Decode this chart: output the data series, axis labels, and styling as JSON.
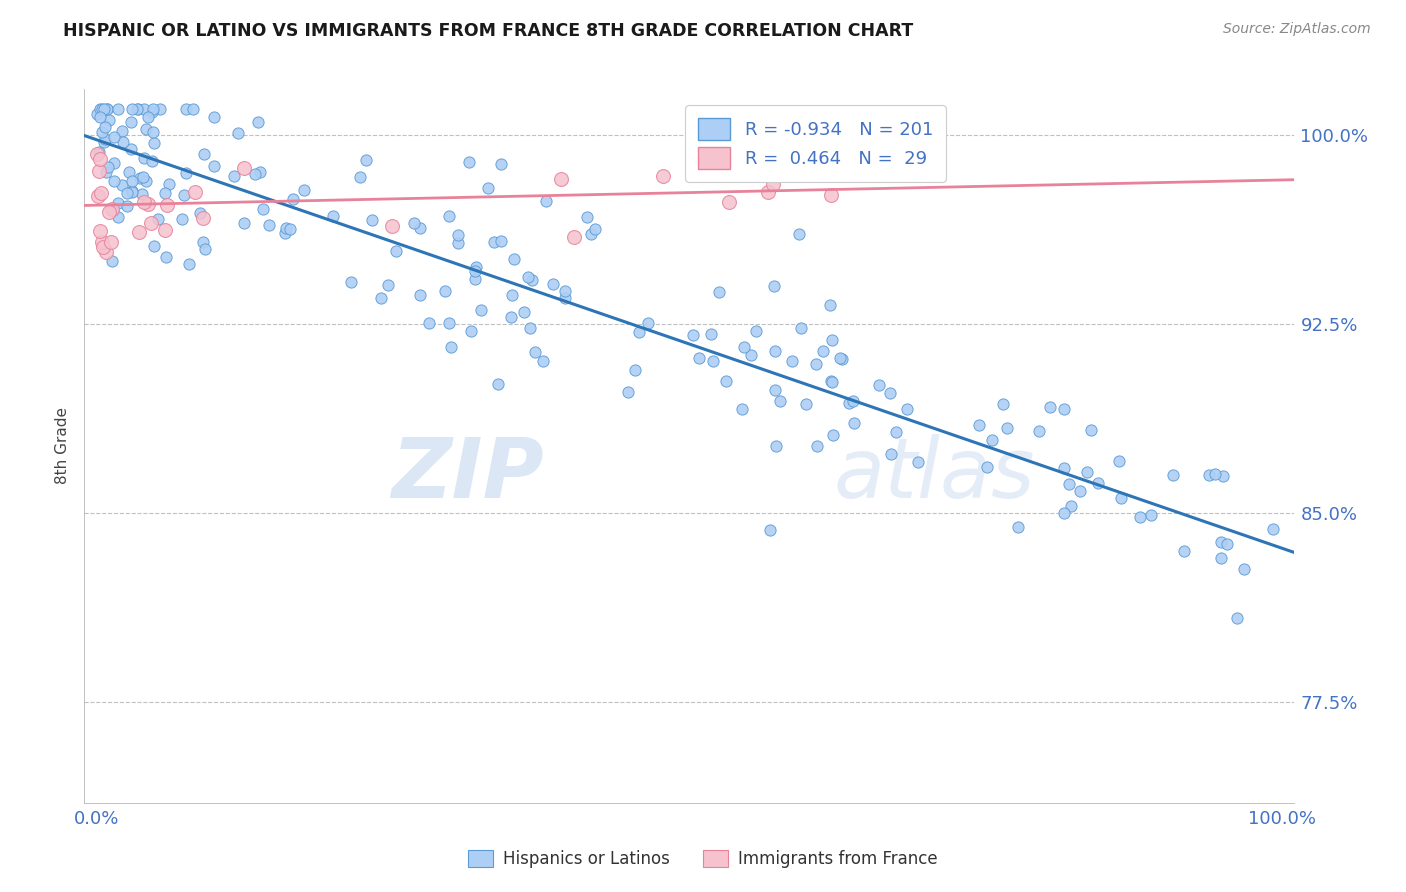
{
  "title": "HISPANIC OR LATINO VS IMMIGRANTS FROM FRANCE 8TH GRADE CORRELATION CHART",
  "source_text": "Source: ZipAtlas.com",
  "ylabel": "8th Grade",
  "watermark_zip": "ZIP",
  "watermark_atlas": "atlas",
  "xlim": [
    -0.01,
    1.01
  ],
  "ylim": [
    0.735,
    1.018
  ],
  "x_ticks": [
    0.0,
    1.0
  ],
  "x_tick_labels": [
    "0.0%",
    "100.0%"
  ],
  "y_ticks": [
    0.775,
    0.85,
    0.925,
    1.0
  ],
  "y_tick_labels": [
    "77.5%",
    "85.0%",
    "92.5%",
    "100.0%"
  ],
  "blue_R": -0.934,
  "blue_N": 201,
  "pink_R": 0.464,
  "pink_N": 29,
  "blue_color": "#aecff5",
  "blue_edge_color": "#5b9bd5",
  "blue_line_color": "#2e75b6",
  "pink_color": "#f5c2ce",
  "pink_edge_color": "#e8829a",
  "pink_line_color": "#e8829a",
  "legend_label_blue": "Hispanics or Latinos",
  "legend_label_pink": "Immigrants from France",
  "title_color": "#1a1a1a",
  "tick_label_color": "#4472c4",
  "grid_color": "#c0c0c0",
  "background_color": "#ffffff",
  "blue_line_start_y": 0.998,
  "blue_line_end_y": 0.836,
  "pink_line_start_y": 0.972,
  "pink_line_end_y": 0.982,
  "blue_seed": 42,
  "pink_seed": 15
}
